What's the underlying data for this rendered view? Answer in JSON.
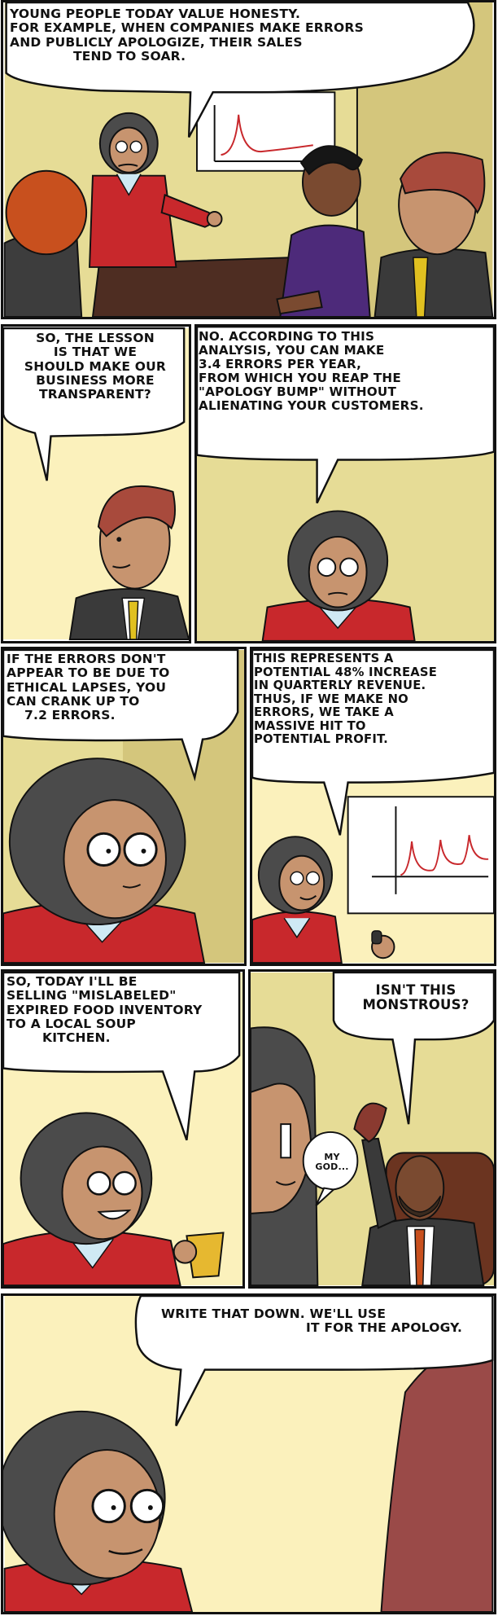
{
  "comic": {
    "panels": [
      {
        "lines": [
          "YOUNG PEOPLE TODAY VALUE HONESTY.",
          "FOR EXAMPLE, WHEN COMPANIES MAKE ERRORS",
          "AND PUBLICLY APOLOGIZE, THEIR SALES",
          "TEND TO SOAR."
        ]
      },
      {
        "lines": [
          "SO, THE LESSON",
          "IS THAT WE",
          "SHOULD MAKE OUR",
          "BUSINESS MORE",
          "TRANSPARENT?"
        ]
      },
      {
        "lines": [
          "NO. ACCORDING TO THIS",
          "ANALYSIS, YOU CAN MAKE",
          "3.4 ERRORS PER YEAR,",
          "FROM WHICH YOU REAP THE",
          "\"APOLOGY BUMP\" WITHOUT",
          "ALIENATING YOUR CUSTOMERS."
        ]
      },
      {
        "lines": [
          "IF THE ERRORS DON'T",
          "APPEAR TO BE DUE TO",
          "ETHICAL LAPSES, YOU",
          "CAN CRANK UP TO",
          "7.2 ERRORS."
        ]
      },
      {
        "lines": [
          "THIS REPRESENTS A",
          "POTENTIAL 48% INCREASE",
          "IN QUARTERLY REVENUE.",
          "THUS, IF WE MAKE NO",
          "ERRORS, WE TAKE A",
          "MASSIVE HIT TO",
          "POTENTIAL PROFIT."
        ]
      },
      {
        "lines": [
          "SO, TODAY I'LL BE",
          "SELLING \"MISLABELED\"",
          "EXPIRED FOOD INVENTORY",
          "TO A LOCAL SOUP",
          "KITCHEN."
        ]
      },
      {
        "lines": [
          "ISN'T THIS",
          "MONSTROUS?"
        ],
        "aside": [
          "MY",
          "GOD..."
        ]
      },
      {
        "lines": [
          "WRITE THAT DOWN. WE'LL USE",
          "IT FOR THE APOLOGY."
        ]
      }
    ]
  },
  "colors": {
    "wall": "#e6dc96",
    "wall_light": "#fbf1bc",
    "jacket": "#c8282c",
    "hair": "#4b4b4b",
    "skin": "#c7946f",
    "outline": "#111111"
  }
}
